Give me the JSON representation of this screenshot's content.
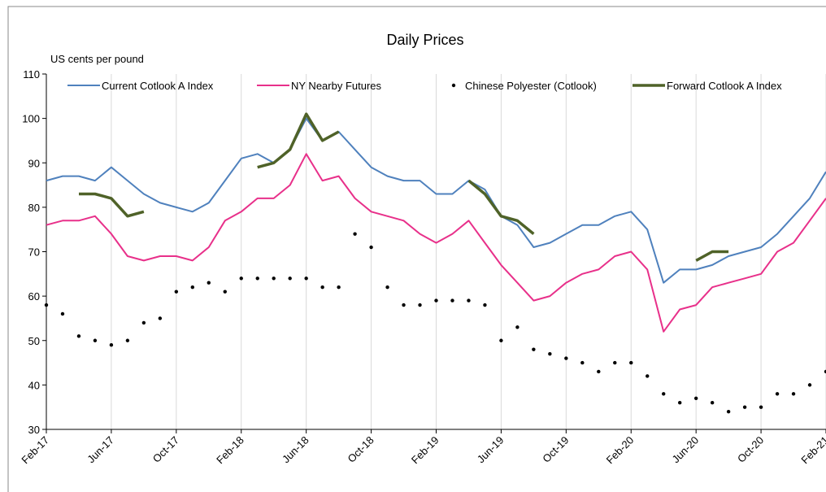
{
  "chart_data": {
    "type": "line",
    "title": "Daily Prices",
    "y_label": "US cents per pound",
    "x": [
      "2017-02",
      "2017-03",
      "2017-04",
      "2017-05",
      "2017-06",
      "2017-07",
      "2017-08",
      "2017-09",
      "2017-10",
      "2017-11",
      "2017-12",
      "2018-01",
      "2018-02",
      "2018-03",
      "2018-04",
      "2018-05",
      "2018-06",
      "2018-07",
      "2018-08",
      "2018-09",
      "2018-10",
      "2018-11",
      "2018-12",
      "2019-01",
      "2019-02",
      "2019-03",
      "2019-04",
      "2019-05",
      "2019-06",
      "2019-07",
      "2019-08",
      "2019-09",
      "2019-10",
      "2019-11",
      "2019-12",
      "2020-01",
      "2020-02",
      "2020-03",
      "2020-04",
      "2020-05",
      "2020-06",
      "2020-07",
      "2020-08",
      "2020-09",
      "2020-10",
      "2020-11",
      "2020-12",
      "2021-01",
      "2021-02"
    ],
    "xlim": [
      "2017-02",
      "2021-02"
    ],
    "xticks": [
      {
        "value": "2017-02",
        "label": "Feb-17"
      },
      {
        "value": "2017-06",
        "label": "Jun-17"
      },
      {
        "value": "2017-10",
        "label": "Oct-17"
      },
      {
        "value": "2018-02",
        "label": "Feb-18"
      },
      {
        "value": "2018-06",
        "label": "Jun-18"
      },
      {
        "value": "2018-10",
        "label": "Oct-18"
      },
      {
        "value": "2019-02",
        "label": "Feb-19"
      },
      {
        "value": "2019-06",
        "label": "Jun-19"
      },
      {
        "value": "2019-10",
        "label": "Oct-19"
      },
      {
        "value": "2020-02",
        "label": "Feb-20"
      },
      {
        "value": "2020-06",
        "label": "Jun-20"
      },
      {
        "value": "2020-10",
        "label": "Oct-20"
      },
      {
        "value": "2021-02",
        "label": "Feb-21"
      }
    ],
    "ylim": [
      30,
      110
    ],
    "yticks": [
      30,
      40,
      50,
      60,
      70,
      80,
      90,
      100,
      110
    ],
    "xgrid": true,
    "legend": "top",
    "series": [
      {
        "name": "Current Cotlook A Index",
        "color": "#4f81bd",
        "mode": "line",
        "values": [
          86,
          87,
          87,
          86,
          89,
          86,
          83,
          81,
          80,
          79,
          81,
          86,
          91,
          92,
          90,
          93,
          100,
          95,
          97,
          93,
          89,
          87,
          86,
          86,
          83,
          83,
          86,
          84,
          78,
          76,
          71,
          72,
          74,
          76,
          76,
          78,
          79,
          75,
          63,
          66,
          66,
          67,
          69,
          70,
          71,
          74,
          78,
          82,
          88
        ]
      },
      {
        "name": "NY Nearby Futures",
        "color": "#e8308a",
        "mode": "line",
        "values": [
          76,
          77,
          77,
          78,
          74,
          69,
          68,
          69,
          69,
          68,
          71,
          77,
          79,
          82,
          82,
          85,
          92,
          86,
          87,
          82,
          79,
          78,
          77,
          74,
          72,
          74,
          77,
          72,
          67,
          63,
          59,
          60,
          63,
          65,
          66,
          69,
          70,
          66,
          52,
          57,
          58,
          62,
          63,
          64,
          65,
          70,
          72,
          77,
          82
        ]
      },
      {
        "name": "Chinese Polyester (Cotlook)",
        "color": "#000000",
        "mode": "markers",
        "values": [
          58,
          56,
          51,
          50,
          49,
          50,
          54,
          55,
          61,
          62,
          63,
          61,
          64,
          64,
          64,
          64,
          64,
          62,
          62,
          74,
          71,
          62,
          58,
          58,
          59,
          59,
          59,
          58,
          50,
          53,
          48,
          47,
          46,
          45,
          43,
          45,
          45,
          42,
          38,
          36,
          37,
          36,
          34,
          35,
          35,
          38,
          38,
          40,
          43
        ]
      },
      {
        "name": "Forward Cotlook A Index",
        "color": "#4f6228",
        "mode": "line",
        "values": [
          null,
          null,
          83,
          83,
          82,
          78,
          79,
          null,
          null,
          null,
          null,
          null,
          null,
          89,
          90,
          93,
          101,
          95,
          97,
          null,
          null,
          null,
          null,
          null,
          null,
          null,
          86,
          83,
          78,
          77,
          74,
          null,
          null,
          null,
          null,
          null,
          null,
          null,
          null,
          null,
          68,
          70,
          70,
          null,
          null,
          null,
          null,
          null,
          null
        ]
      }
    ]
  }
}
